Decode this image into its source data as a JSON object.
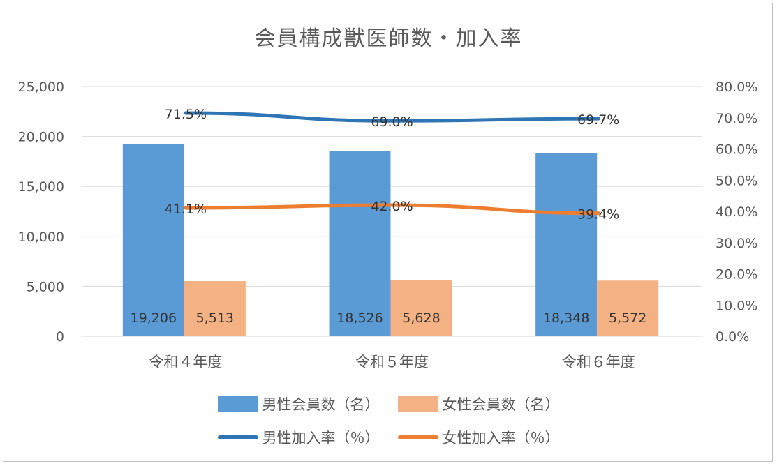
{
  "chart_data": {
    "type": "bar",
    "title": "会員構成獣医師数・加入率",
    "categories": [
      "令和４年度",
      "令和５年度",
      "令和６年度"
    ],
    "series": [
      {
        "name": "男性会員数（名）",
        "kind": "bar",
        "axis": "left",
        "color": "#5b9bd5",
        "values": [
          19206,
          18526,
          18348
        ],
        "labels": [
          "19,206",
          "18,526",
          "18,348"
        ]
      },
      {
        "name": "女性会員数（名）",
        "kind": "bar",
        "axis": "left",
        "color": "#f4b183",
        "values": [
          5513,
          5628,
          5572
        ],
        "labels": [
          "5,513",
          "5,628",
          "5,572"
        ]
      },
      {
        "name": "男性加入率（%）",
        "kind": "line",
        "axis": "right",
        "color": "#2e75b6",
        "values": [
          71.5,
          69.0,
          69.7
        ],
        "labels": [
          "71.5%",
          "69.0%",
          "69.7%"
        ]
      },
      {
        "name": "女性加入率（%）",
        "kind": "line",
        "axis": "right",
        "color": "#ed7d31",
        "values": [
          41.1,
          42.0,
          39.4
        ],
        "labels": [
          "41.1%",
          "42.0%",
          "39.4%"
        ]
      }
    ],
    "y_left": {
      "min": 0,
      "max": 25000,
      "ticks": [
        "0",
        "5,000",
        "10,000",
        "15,000",
        "20,000",
        "25,000"
      ],
      "tick_values": [
        0,
        5000,
        10000,
        15000,
        20000,
        25000
      ]
    },
    "y_right": {
      "min": 0,
      "max": 80,
      "ticks": [
        "0.0%",
        "10.0%",
        "20.0%",
        "30.0%",
        "40.0%",
        "50.0%",
        "60.0%",
        "70.0%",
        "80.0%"
      ],
      "tick_values": [
        0,
        10,
        20,
        30,
        40,
        50,
        60,
        70,
        80
      ]
    },
    "grid": true,
    "legend_position": "bottom",
    "legend": [
      [
        "男性会員数（名）",
        "女性会員数（名）"
      ],
      [
        "男性加入率（%）",
        "女性加入率（%）"
      ]
    ],
    "legend_display": [
      [
        "男性会員数（名）",
        "女性会員数（名）"
      ],
      [
        "男性加入率（％）",
        "女性加入率（％）"
      ]
    ]
  }
}
